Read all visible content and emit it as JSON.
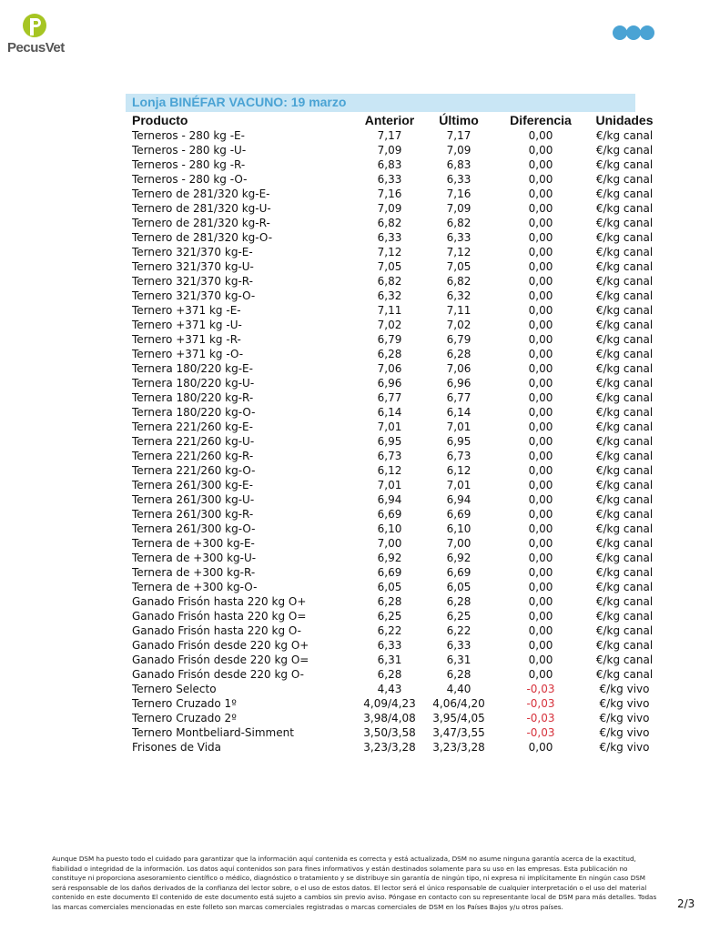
{
  "brand": {
    "name": "PecusVet",
    "logo_color": "#a6c523",
    "dots_color": "#4aa3d4"
  },
  "title": "Lonja BINÉFAR VACUNO: 19 marzo",
  "headers": [
    "Producto",
    "Anterior",
    "Último",
    "Diferencia",
    "Unidades"
  ],
  "rows": [
    [
      "Terneros - 280 kg -E-",
      "7,17",
      "7,17",
      "0,00",
      "€/kg canal"
    ],
    [
      "Terneros - 280 kg -U-",
      "7,09",
      "7,09",
      "0,00",
      "€/kg canal"
    ],
    [
      "Terneros - 280 kg -R-",
      "6,83",
      "6,83",
      "0,00",
      "€/kg canal"
    ],
    [
      "Terneros - 280 kg -O-",
      "6,33",
      "6,33",
      "0,00",
      "€/kg canal"
    ],
    [
      "Ternero de 281/320 kg-E-",
      "7,16",
      "7,16",
      "0,00",
      "€/kg canal"
    ],
    [
      "Ternero de 281/320 kg-U-",
      "7,09",
      "7,09",
      "0,00",
      "€/kg canal"
    ],
    [
      "Ternero de 281/320 kg-R-",
      "6,82",
      "6,82",
      "0,00",
      "€/kg canal"
    ],
    [
      "Ternero de 281/320 kg-O-",
      "6,33",
      "6,33",
      "0,00",
      "€/kg canal"
    ],
    [
      "Ternero 321/370 kg-E-",
      "7,12",
      "7,12",
      "0,00",
      "€/kg canal"
    ],
    [
      "Ternero 321/370 kg-U-",
      "7,05",
      "7,05",
      "0,00",
      "€/kg canal"
    ],
    [
      "Ternero 321/370 kg-R-",
      "6,82",
      "6,82",
      "0,00",
      "€/kg canal"
    ],
    [
      "Ternero 321/370 kg-O-",
      "6,32",
      "6,32",
      "0,00",
      "€/kg canal"
    ],
    [
      "Ternero +371 kg -E-",
      "7,11",
      "7,11",
      "0,00",
      "€/kg canal"
    ],
    [
      "Ternero +371 kg -U-",
      "7,02",
      "7,02",
      "0,00",
      "€/kg canal"
    ],
    [
      "Ternero +371 kg -R-",
      "6,79",
      "6,79",
      "0,00",
      "€/kg canal"
    ],
    [
      "Ternero +371 kg -O-",
      "6,28",
      "6,28",
      "0,00",
      "€/kg canal"
    ],
    [
      "Ternera 180/220 kg-E-",
      "7,06",
      "7,06",
      "0,00",
      "€/kg canal"
    ],
    [
      "Ternera 180/220 kg-U-",
      "6,96",
      "6,96",
      "0,00",
      "€/kg canal"
    ],
    [
      "Ternera 180/220 kg-R-",
      "6,77",
      "6,77",
      "0,00",
      "€/kg canal"
    ],
    [
      "Ternera 180/220 kg-O-",
      "6,14",
      "6,14",
      "0,00",
      "€/kg canal"
    ],
    [
      "Ternera 221/260 kg-E-",
      "7,01",
      "7,01",
      "0,00",
      "€/kg canal"
    ],
    [
      "Ternera 221/260 kg-U-",
      "6,95",
      "6,95",
      "0,00",
      "€/kg canal"
    ],
    [
      "Ternera 221/260 kg-R-",
      "6,73",
      "6,73",
      "0,00",
      "€/kg canal"
    ],
    [
      "Ternera 221/260 kg-O-",
      "6,12",
      "6,12",
      "0,00",
      "€/kg canal"
    ],
    [
      "Ternera 261/300 kg-E-",
      "7,01",
      "7,01",
      "0,00",
      "€/kg canal"
    ],
    [
      "Ternera 261/300 kg-U-",
      "6,94",
      "6,94",
      "0,00",
      "€/kg canal"
    ],
    [
      "Ternera 261/300 kg-R-",
      "6,69",
      "6,69",
      "0,00",
      "€/kg canal"
    ],
    [
      "Ternera 261/300 kg-O-",
      "6,10",
      "6,10",
      "0,00",
      "€/kg canal"
    ],
    [
      "Ternera de +300 kg-E-",
      "7,00",
      "7,00",
      "0,00",
      "€/kg canal"
    ],
    [
      "Ternera de +300 kg-U-",
      "6,92",
      "6,92",
      "0,00",
      "€/kg canal"
    ],
    [
      "Ternera de +300 kg-R-",
      "6,69",
      "6,69",
      "0,00",
      "€/kg canal"
    ],
    [
      "Ternera de +300 kg-O-",
      "6,05",
      "6,05",
      "0,00",
      "€/kg canal"
    ],
    [
      "Ganado Frisón hasta 220 kg O+",
      "6,28",
      "6,28",
      "0,00",
      "€/kg canal"
    ],
    [
      "Ganado Frisón hasta 220 kg O=",
      "6,25",
      "6,25",
      "0,00",
      "€/kg canal"
    ],
    [
      "Ganado Frisón hasta 220 kg O-",
      "6,22",
      "6,22",
      "0,00",
      "€/kg canal"
    ],
    [
      "Ganado Frisón desde 220 kg O+",
      "6,33",
      "6,33",
      "0,00",
      "€/kg canal"
    ],
    [
      "Ganado Frisón desde 220 kg O=",
      "6,31",
      "6,31",
      "0,00",
      "€/kg canal"
    ],
    [
      "Ganado Frisón desde 220 kg O-",
      "6,28",
      "6,28",
      "0,00",
      "€/kg canal"
    ],
    [
      "Ternero Selecto",
      "4,43",
      "4,40",
      "-0,03",
      "€/kg vivo"
    ],
    [
      "Ternero Cruzado 1º",
      "4,09/4,23",
      "4,06/4,20",
      "-0,03",
      "€/kg vivo"
    ],
    [
      "Ternero Cruzado 2º",
      "3,98/4,08",
      "3,95/4,05",
      "-0,03",
      "€/kg vivo"
    ],
    [
      "Ternero Montbeliard-Simment",
      "3,50/3,58",
      "3,47/3,55",
      "-0,03",
      "€/kg vivo"
    ],
    [
      "Frisones de Vida",
      "3,23/3,28",
      "3,23/3,28",
      "0,00",
      "€/kg vivo"
    ]
  ],
  "negative_color": "#d6323c",
  "disclaimer": "Aunque DSM ha puesto todo el cuidado para garantizar que la información aquí contenida es correcta y está actualizada, DSM no asume ninguna garantía acerca de la exactitud, fiabilidad o integridad de la información. Los datos aquí contenidos son para fines informativos y están destinados solamente para su uso en las empresas. Esta publicación no constituye ni proporciona asesoramiento científico o médico, diagnóstico o tratamiento y se distribuye sin garantía de ningún tipo, ni expresa ni implícitamente En ningún caso DSM será responsable de los daños derivados de la confianza del lector sobre, o el uso de estos datos. El lector será el único responsable de cualquier interpretación o el uso del material contenido en este documento El contenido de este documento está sujeto a cambios sin previo aviso. Póngase en contacto con su representante local de DSM para más detalles. Todas las marcas comerciales mencionadas en este folleto son marcas comerciales registradas o marcas comerciales de DSM en los Países Bajos y/u otros países.",
  "page": "2/3"
}
